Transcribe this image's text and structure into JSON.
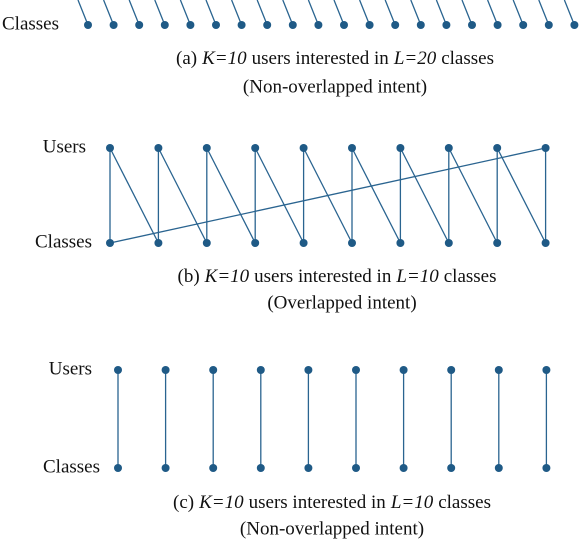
{
  "panels": [
    {
      "labels": {
        "bottom": "Classes"
      },
      "caption": {
        "parts": [
          "(a)",
          "K=10",
          "users interested in",
          "L=20",
          "classes"
        ],
        "note": "(Non-overlapped intent)"
      }
    },
    {
      "labels": {
        "top": "Users",
        "bottom": "Classes"
      },
      "caption": {
        "parts": [
          "(b)",
          "K=10",
          "users interested in",
          "L=10",
          "classes"
        ],
        "note": "(Overlapped intent)"
      }
    },
    {
      "labels": {
        "top": "Users",
        "bottom": "Classes"
      },
      "caption": {
        "parts": [
          "(c)",
          "K=10",
          "users interested in",
          "L=10",
          "classes"
        ],
        "note": "(Non-overlapped intent)"
      }
    }
  ]
}
